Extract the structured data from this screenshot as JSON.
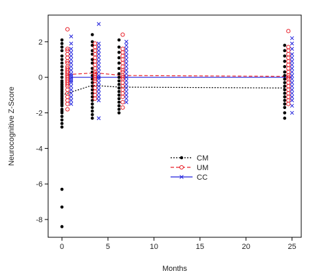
{
  "chart_data": {
    "type": "scatter",
    "title": "",
    "xlabel": "Months",
    "ylabel": "Neurocognitive Z-Score",
    "xlim": [
      -1.5,
      26
    ],
    "ylim": [
      -9,
      3.5
    ],
    "xticks": [
      0,
      5,
      10,
      15,
      20,
      25
    ],
    "yticks": [
      -8,
      -6,
      -4,
      -2,
      0,
      2
    ],
    "grid": false,
    "legend_position": "center",
    "series": [
      {
        "name": "CM",
        "color": "#000000",
        "marker": "filled-circle",
        "line_style": "dotted",
        "x_offsets": [
          0,
          3.3,
          6.2,
          24.2
        ],
        "mean_line": [
          -1.0,
          -0.45,
          -0.55,
          -0.6
        ],
        "points_by_visit": [
          [
            2.1,
            1.9,
            1.7,
            1.5,
            1.2,
            1.0,
            0.8,
            0.6,
            0.4,
            0.2,
            0.0,
            -0.2,
            -0.3,
            -0.4,
            -0.5,
            -0.6,
            -0.7,
            -0.8,
            -0.9,
            -1.0,
            -1.1,
            -1.2,
            -1.3,
            -1.4,
            -1.5,
            -1.6,
            -1.8,
            -1.9,
            -2.0,
            -2.2,
            -2.4,
            -2.6,
            -2.8,
            -6.3,
            -7.3,
            -8.4
          ],
          [
            2.4,
            2.0,
            1.8,
            1.5,
            1.3,
            1.0,
            0.8,
            0.5,
            0.3,
            0.1,
            -0.1,
            -0.3,
            -0.5,
            -0.7,
            -0.9,
            -1.1,
            -1.3,
            -1.5,
            -1.7,
            -1.9,
            -2.1,
            -2.3
          ],
          [
            2.1,
            1.7,
            1.4,
            1.1,
            0.8,
            0.5,
            0.2,
            0.0,
            -0.2,
            -0.4,
            -0.6,
            -0.8,
            -1.0,
            -1.2,
            -1.4,
            -1.6,
            -1.8,
            -2.0
          ],
          [
            1.8,
            1.5,
            1.2,
            0.9,
            0.6,
            0.3,
            0.1,
            -0.1,
            -0.3,
            -0.5,
            -0.7,
            -0.9,
            -1.1,
            -1.3,
            -1.5,
            -1.7,
            -2.0,
            -2.3
          ]
        ]
      },
      {
        "name": "UM",
        "color": "#e8202a",
        "marker": "open-circle",
        "line_style": "dashed",
        "x_offsets": [
          0.6,
          3.6,
          6.6,
          24.6
        ],
        "mean_line": [
          0.15,
          0.25,
          0.1,
          0.05
        ],
        "points_by_visit": [
          [
            2.7,
            1.6,
            1.5,
            1.3,
            1.1,
            0.9,
            0.8,
            0.6,
            0.5,
            0.4,
            0.3,
            0.2,
            0.1,
            0.0,
            -0.1,
            -0.2,
            -0.3,
            -0.4,
            -0.5,
            -0.7,
            -0.9,
            -1.1,
            -1.3,
            -1.5,
            -1.8
          ],
          [
            1.9,
            1.7,
            1.5,
            1.3,
            1.1,
            0.9,
            0.7,
            0.5,
            0.3,
            0.2,
            0.1,
            0.0,
            -0.1,
            -0.2,
            -0.4,
            -0.6,
            -0.8,
            -1.0,
            -1.2
          ],
          [
            2.4,
            1.6,
            1.4,
            1.2,
            1.0,
            0.8,
            0.6,
            0.4,
            0.3,
            0.1,
            0.0,
            -0.1,
            -0.3,
            -0.5,
            -0.7,
            -0.9,
            -1.1,
            -1.4,
            -1.7
          ],
          [
            2.6,
            1.7,
            1.5,
            1.3,
            1.1,
            0.9,
            0.7,
            0.5,
            0.3,
            0.1,
            0.0,
            -0.1,
            -0.3,
            -0.5,
            -0.7,
            -0.9,
            -1.1,
            -1.3,
            -1.5
          ]
        ]
      },
      {
        "name": "CC",
        "color": "#2222dd",
        "marker": "x",
        "line_style": "solid",
        "x_offsets": [
          1.0,
          4.0,
          7.0,
          25.0
        ],
        "mean_line": [
          0.0,
          0.0,
          0.0,
          0.0
        ],
        "points_by_visit": [
          [
            2.3,
            1.9,
            1.6,
            1.4,
            1.2,
            1.0,
            0.8,
            0.6,
            0.4,
            0.2,
            0.1,
            0.0,
            -0.1,
            -0.2,
            -0.3,
            -0.5,
            -0.7,
            -0.9,
            -1.1,
            -1.3,
            -1.5
          ],
          [
            3.0,
            1.9,
            1.7,
            1.5,
            1.3,
            1.1,
            0.9,
            0.7,
            0.5,
            0.3,
            0.1,
            0.0,
            -0.1,
            -0.3,
            -0.5,
            -0.7,
            -0.9,
            -1.1,
            -1.3,
            -2.3
          ],
          [
            2.0,
            1.8,
            1.6,
            1.4,
            1.2,
            1.0,
            0.8,
            0.6,
            0.4,
            0.2,
            0.0,
            -0.2,
            -0.4,
            -0.6,
            -0.8,
            -1.0,
            -1.2,
            -1.4
          ],
          [
            2.2,
            1.9,
            1.6,
            1.3,
            1.1,
            0.9,
            0.7,
            0.5,
            0.3,
            0.1,
            -0.1,
            -0.3,
            -0.5,
            -0.7,
            -0.9,
            -1.1,
            -1.3,
            -1.6,
            -2.0
          ]
        ]
      }
    ]
  }
}
